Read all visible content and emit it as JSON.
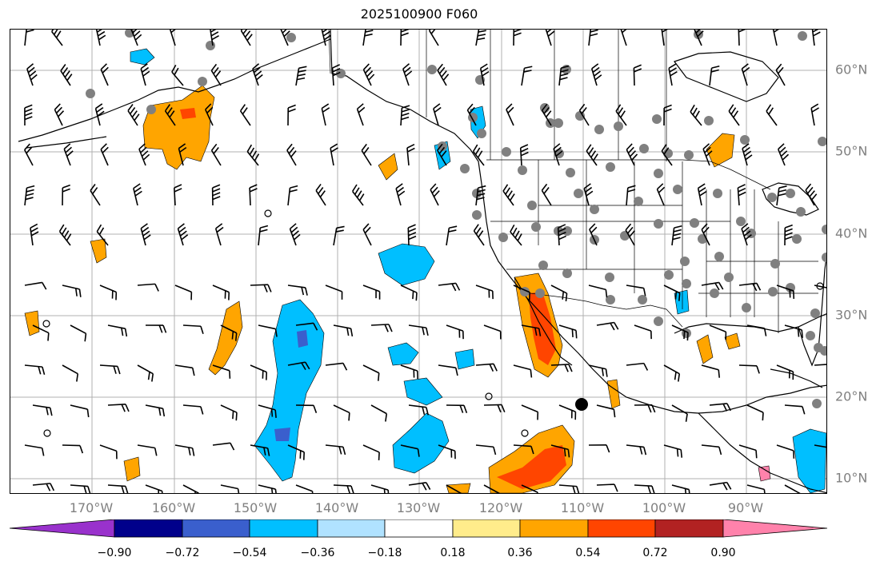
{
  "title": "2025100900 F060",
  "longitude_labels": [
    "170°W",
    "160°W",
    "150°W",
    "140°W",
    "130°W",
    "120°W",
    "110°W",
    "100°W",
    "90°W"
  ],
  "latitude_labels": [
    "60°N",
    "50°N",
    "40°N",
    "30°N",
    "20°N",
    "10°N"
  ],
  "colorbar": {
    "ticks": [
      "−0.90",
      "−0.72",
      "−0.54",
      "−0.36",
      "−0.18",
      "0.18",
      "0.36",
      "0.54",
      "0.72",
      "0.90"
    ],
    "colors": [
      "#9932cc",
      "#00008b",
      "#3a5fcd",
      "#00bfff",
      "#b0e2ff",
      "#ffffff",
      "#ffec8b",
      "#ffa500",
      "#ff4500",
      "#b22222",
      "#ff82ab"
    ]
  },
  "colors": {
    "grid": "#b0b0b0",
    "coast": "#000000",
    "station": "#808080",
    "label": "#808080"
  }
}
